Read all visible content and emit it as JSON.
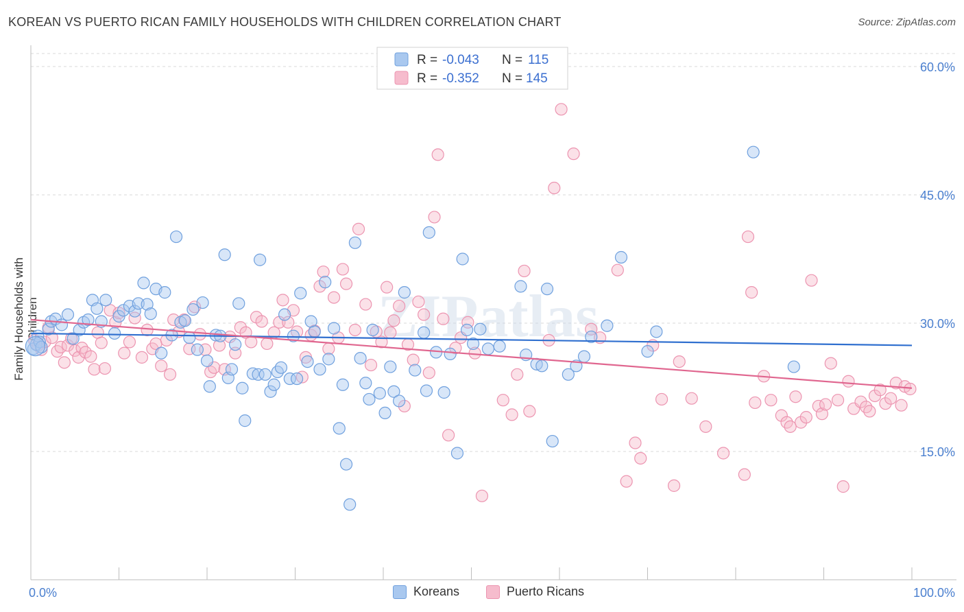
{
  "title": "KOREAN VS PUERTO RICAN FAMILY HOUSEHOLDS WITH CHILDREN CORRELATION CHART",
  "source": "Source: ZipAtlas.com",
  "watermark": "ZIPatlas",
  "colors": {
    "korean_fill": "#a9c8ef",
    "korean_stroke": "#6fa0de",
    "korean_line": "#2f6fcf",
    "pr_fill": "#f6bccd",
    "pr_stroke": "#ec94b0",
    "pr_line": "#e0668f",
    "tick_text": "#4a7fcf",
    "grid": "#d9d9d9"
  },
  "legend": {
    "row1": {
      "r_label": "R =",
      "r_value": "-0.043",
      "n_label": "N =",
      "n_value": "115"
    },
    "row2": {
      "r_label": "R =",
      "r_value": "-0.352",
      "n_label": "N =",
      "n_value": "145"
    }
  },
  "bottom_legend": {
    "korean": "Koreans",
    "pr": "Puerto Ricans"
  },
  "chart_data": {
    "type": "scatter",
    "title": "KOREAN VS PUERTO RICAN FAMILY HOUSEHOLDS WITH CHILDREN CORRELATION CHART",
    "xlabel": "",
    "ylabel": "Family Households with Children",
    "xlim": [
      0,
      100
    ],
    "ylim": [
      0,
      60
    ],
    "x_tick_labels": [
      "0.0%",
      "100.0%"
    ],
    "y_ticks": [
      15,
      30,
      45,
      60
    ],
    "y_tick_labels": [
      "15.0%",
      "30.0%",
      "45.0%",
      "60.0%"
    ],
    "grid": "horizontal dashed",
    "legend_position": "top-center",
    "series": [
      {
        "name": "Koreans",
        "R": -0.043,
        "N": 115,
        "trend": {
          "x": [
            0,
            100
          ],
          "y": [
            28.8,
            27.4
          ]
        },
        "points": [
          [
            0.3,
            27.0
          ],
          [
            0.6,
            27.5
          ],
          [
            0.8,
            28.5
          ],
          [
            1.0,
            27.8
          ],
          [
            1.2,
            27.2
          ],
          [
            2.0,
            29.3
          ],
          [
            2.3,
            30.2
          ],
          [
            2.8,
            30.5
          ],
          [
            3.5,
            29.8
          ],
          [
            4.2,
            31.0
          ],
          [
            4.8,
            28.2
          ],
          [
            5.5,
            29.2
          ],
          [
            6.0,
            30.1
          ],
          [
            6.5,
            30.4
          ],
          [
            7.0,
            32.7
          ],
          [
            7.5,
            31.7
          ],
          [
            8.0,
            30.2
          ],
          [
            8.5,
            32.7
          ],
          [
            9.5,
            28.8
          ],
          [
            10.0,
            30.8
          ],
          [
            10.5,
            31.5
          ],
          [
            11.2,
            32.0
          ],
          [
            11.8,
            31.4
          ],
          [
            12.2,
            32.3
          ],
          [
            12.8,
            34.7
          ],
          [
            13.2,
            32.2
          ],
          [
            13.6,
            31.1
          ],
          [
            14.2,
            34.0
          ],
          [
            14.8,
            26.5
          ],
          [
            15.2,
            33.6
          ],
          [
            16.0,
            28.6
          ],
          [
            16.5,
            40.1
          ],
          [
            17.0,
            30.1
          ],
          [
            17.5,
            30.3
          ],
          [
            18.0,
            28.3
          ],
          [
            18.4,
            31.6
          ],
          [
            18.9,
            26.9
          ],
          [
            19.5,
            32.4
          ],
          [
            20.0,
            25.6
          ],
          [
            20.3,
            22.6
          ],
          [
            21.0,
            28.6
          ],
          [
            21.5,
            28.5
          ],
          [
            22.0,
            38.0
          ],
          [
            22.4,
            23.6
          ],
          [
            22.8,
            24.6
          ],
          [
            23.2,
            27.5
          ],
          [
            23.6,
            32.3
          ],
          [
            24.0,
            22.4
          ],
          [
            24.3,
            18.6
          ],
          [
            25.2,
            24.1
          ],
          [
            25.8,
            24.0
          ],
          [
            26.0,
            37.4
          ],
          [
            26.6,
            24.0
          ],
          [
            27.2,
            22.0
          ],
          [
            27.6,
            22.8
          ],
          [
            28.0,
            24.3
          ],
          [
            28.4,
            24.8
          ],
          [
            28.8,
            31.0
          ],
          [
            29.4,
            23.5
          ],
          [
            29.8,
            28.5
          ],
          [
            30.2,
            23.5
          ],
          [
            30.6,
            33.5
          ],
          [
            31.4,
            25.5
          ],
          [
            31.8,
            30.2
          ],
          [
            32.2,
            29.0
          ],
          [
            32.8,
            24.6
          ],
          [
            33.4,
            34.8
          ],
          [
            33.8,
            25.8
          ],
          [
            34.4,
            29.4
          ],
          [
            35.0,
            17.7
          ],
          [
            35.4,
            22.8
          ],
          [
            35.8,
            13.5
          ],
          [
            36.2,
            8.8
          ],
          [
            36.8,
            39.4
          ],
          [
            37.4,
            25.9
          ],
          [
            38.0,
            23.0
          ],
          [
            38.4,
            21.1
          ],
          [
            38.8,
            29.2
          ],
          [
            39.6,
            21.8
          ],
          [
            40.2,
            19.5
          ],
          [
            40.8,
            24.9
          ],
          [
            41.2,
            22.0
          ],
          [
            41.8,
            20.9
          ],
          [
            42.4,
            33.6
          ],
          [
            43.6,
            24.5
          ],
          [
            44.6,
            28.9
          ],
          [
            44.9,
            22.1
          ],
          [
            45.2,
            40.6
          ],
          [
            46.0,
            26.6
          ],
          [
            46.9,
            21.9
          ],
          [
            47.6,
            26.4
          ],
          [
            48.4,
            14.8
          ],
          [
            49.0,
            37.5
          ],
          [
            49.5,
            29.2
          ],
          [
            50.2,
            27.6
          ],
          [
            51.0,
            29.3
          ],
          [
            51.9,
            27.0
          ],
          [
            53.2,
            27.3
          ],
          [
            55.6,
            34.3
          ],
          [
            56.2,
            26.3
          ],
          [
            57.4,
            25.2
          ],
          [
            58.0,
            25.0
          ],
          [
            58.6,
            34.0
          ],
          [
            59.2,
            16.2
          ],
          [
            61.0,
            24.0
          ],
          [
            61.9,
            25.0
          ],
          [
            62.8,
            26.1
          ],
          [
            63.6,
            28.4
          ],
          [
            65.4,
            29.7
          ],
          [
            67.0,
            37.7
          ],
          [
            70.0,
            26.7
          ],
          [
            71.0,
            29.0
          ],
          [
            82.0,
            50.0
          ],
          [
            86.6,
            24.9
          ]
        ]
      },
      {
        "name": "Puerto Ricans",
        "R": -0.352,
        "N": 145,
        "trend": {
          "x": [
            0,
            100
          ],
          "y": [
            30.4,
            22.4
          ]
        },
        "points": [
          [
            0.4,
            28.0
          ],
          [
            0.8,
            27.4
          ],
          [
            1.2,
            26.9
          ],
          [
            1.6,
            27.8
          ],
          [
            2.0,
            29.5
          ],
          [
            2.4,
            28.3
          ],
          [
            3.0,
            26.7
          ],
          [
            3.4,
            27.2
          ],
          [
            3.8,
            25.4
          ],
          [
            4.2,
            27.4
          ],
          [
            4.6,
            28.2
          ],
          [
            5.0,
            26.8
          ],
          [
            5.4,
            26.0
          ],
          [
            5.8,
            27.1
          ],
          [
            6.2,
            26.6
          ],
          [
            6.8,
            26.1
          ],
          [
            7.2,
            24.6
          ],
          [
            7.6,
            28.9
          ],
          [
            8.0,
            27.7
          ],
          [
            8.4,
            24.7
          ],
          [
            9.0,
            31.5
          ],
          [
            9.6,
            30.1
          ],
          [
            10.0,
            31.2
          ],
          [
            10.6,
            26.5
          ],
          [
            11.2,
            27.8
          ],
          [
            11.8,
            30.6
          ],
          [
            12.6,
            26.0
          ],
          [
            13.2,
            29.2
          ],
          [
            13.8,
            27.0
          ],
          [
            14.2,
            27.6
          ],
          [
            14.8,
            25.0
          ],
          [
            15.4,
            28.0
          ],
          [
            15.8,
            24.0
          ],
          [
            16.2,
            30.4
          ],
          [
            16.8,
            29.0
          ],
          [
            17.4,
            30.4
          ],
          [
            18.0,
            27.0
          ],
          [
            18.6,
            31.9
          ],
          [
            19.2,
            28.7
          ],
          [
            19.8,
            26.9
          ],
          [
            20.4,
            24.3
          ],
          [
            20.8,
            24.8
          ],
          [
            21.4,
            27.4
          ],
          [
            22.0,
            24.6
          ],
          [
            22.6,
            28.4
          ],
          [
            23.2,
            26.5
          ],
          [
            23.8,
            29.5
          ],
          [
            24.4,
            28.9
          ],
          [
            25.0,
            27.8
          ],
          [
            25.6,
            30.7
          ],
          [
            26.2,
            30.2
          ],
          [
            26.8,
            27.6
          ],
          [
            27.6,
            28.9
          ],
          [
            28.2,
            30.1
          ],
          [
            28.6,
            32.7
          ],
          [
            29.2,
            30.1
          ],
          [
            29.8,
            31.5
          ],
          [
            30.2,
            29.0
          ],
          [
            30.8,
            23.7
          ],
          [
            31.2,
            26.0
          ],
          [
            31.8,
            28.6
          ],
          [
            32.2,
            29.1
          ],
          [
            32.8,
            34.3
          ],
          [
            33.2,
            36.0
          ],
          [
            33.8,
            27.0
          ],
          [
            34.4,
            33.0
          ],
          [
            34.9,
            28.3
          ],
          [
            35.4,
            36.3
          ],
          [
            35.8,
            34.6
          ],
          [
            36.8,
            29.2
          ],
          [
            37.2,
            41.0
          ],
          [
            38.0,
            32.2
          ],
          [
            38.6,
            25.1
          ],
          [
            39.2,
            29.0
          ],
          [
            39.8,
            27.8
          ],
          [
            40.4,
            34.2
          ],
          [
            40.8,
            28.9
          ],
          [
            41.2,
            30.3
          ],
          [
            41.8,
            32.0
          ],
          [
            42.4,
            20.3
          ],
          [
            42.8,
            27.5
          ],
          [
            43.4,
            25.7
          ],
          [
            44.0,
            32.5
          ],
          [
            44.6,
            31.0
          ],
          [
            45.2,
            24.2
          ],
          [
            45.8,
            42.4
          ],
          [
            46.2,
            49.7
          ],
          [
            46.8,
            30.5
          ],
          [
            47.4,
            16.9
          ],
          [
            48.2,
            27.1
          ],
          [
            48.8,
            28.3
          ],
          [
            49.6,
            30.1
          ],
          [
            50.4,
            26.5
          ],
          [
            51.2,
            9.8
          ],
          [
            53.6,
            21.0
          ],
          [
            54.6,
            19.3
          ],
          [
            55.2,
            24.0
          ],
          [
            56.0,
            36.1
          ],
          [
            56.6,
            19.7
          ],
          [
            58.8,
            28.0
          ],
          [
            59.4,
            45.8
          ],
          [
            60.2,
            55.0
          ],
          [
            61.6,
            49.8
          ],
          [
            63.6,
            29.3
          ],
          [
            64.6,
            28.3
          ],
          [
            66.6,
            36.2
          ],
          [
            67.6,
            11.5
          ],
          [
            68.6,
            16.0
          ],
          [
            69.2,
            14.2
          ],
          [
            70.6,
            27.4
          ],
          [
            71.6,
            21.1
          ],
          [
            73.0,
            11.0
          ],
          [
            73.6,
            25.5
          ],
          [
            75.0,
            21.2
          ],
          [
            76.6,
            17.9
          ],
          [
            78.6,
            14.8
          ],
          [
            81.0,
            12.3
          ],
          [
            81.4,
            40.1
          ],
          [
            81.8,
            33.6
          ],
          [
            82.2,
            20.7
          ],
          [
            83.2,
            23.8
          ],
          [
            84.0,
            21.0
          ],
          [
            85.2,
            19.2
          ],
          [
            85.8,
            18.4
          ],
          [
            86.2,
            17.9
          ],
          [
            86.8,
            21.4
          ],
          [
            87.4,
            18.4
          ],
          [
            88.0,
            19.0
          ],
          [
            88.6,
            35.0
          ],
          [
            89.4,
            20.3
          ],
          [
            89.8,
            19.4
          ],
          [
            90.2,
            20.5
          ],
          [
            90.8,
            25.3
          ],
          [
            91.6,
            21.0
          ],
          [
            92.2,
            10.9
          ],
          [
            92.8,
            23.2
          ],
          [
            93.4,
            20.0
          ],
          [
            94.2,
            20.8
          ],
          [
            94.8,
            20.2
          ],
          [
            95.2,
            19.7
          ],
          [
            95.8,
            21.5
          ],
          [
            96.4,
            22.2
          ],
          [
            97.0,
            20.6
          ],
          [
            97.6,
            21.2
          ],
          [
            98.2,
            23.0
          ],
          [
            98.8,
            20.4
          ],
          [
            99.2,
            22.6
          ],
          [
            99.8,
            22.3
          ]
        ]
      }
    ]
  }
}
